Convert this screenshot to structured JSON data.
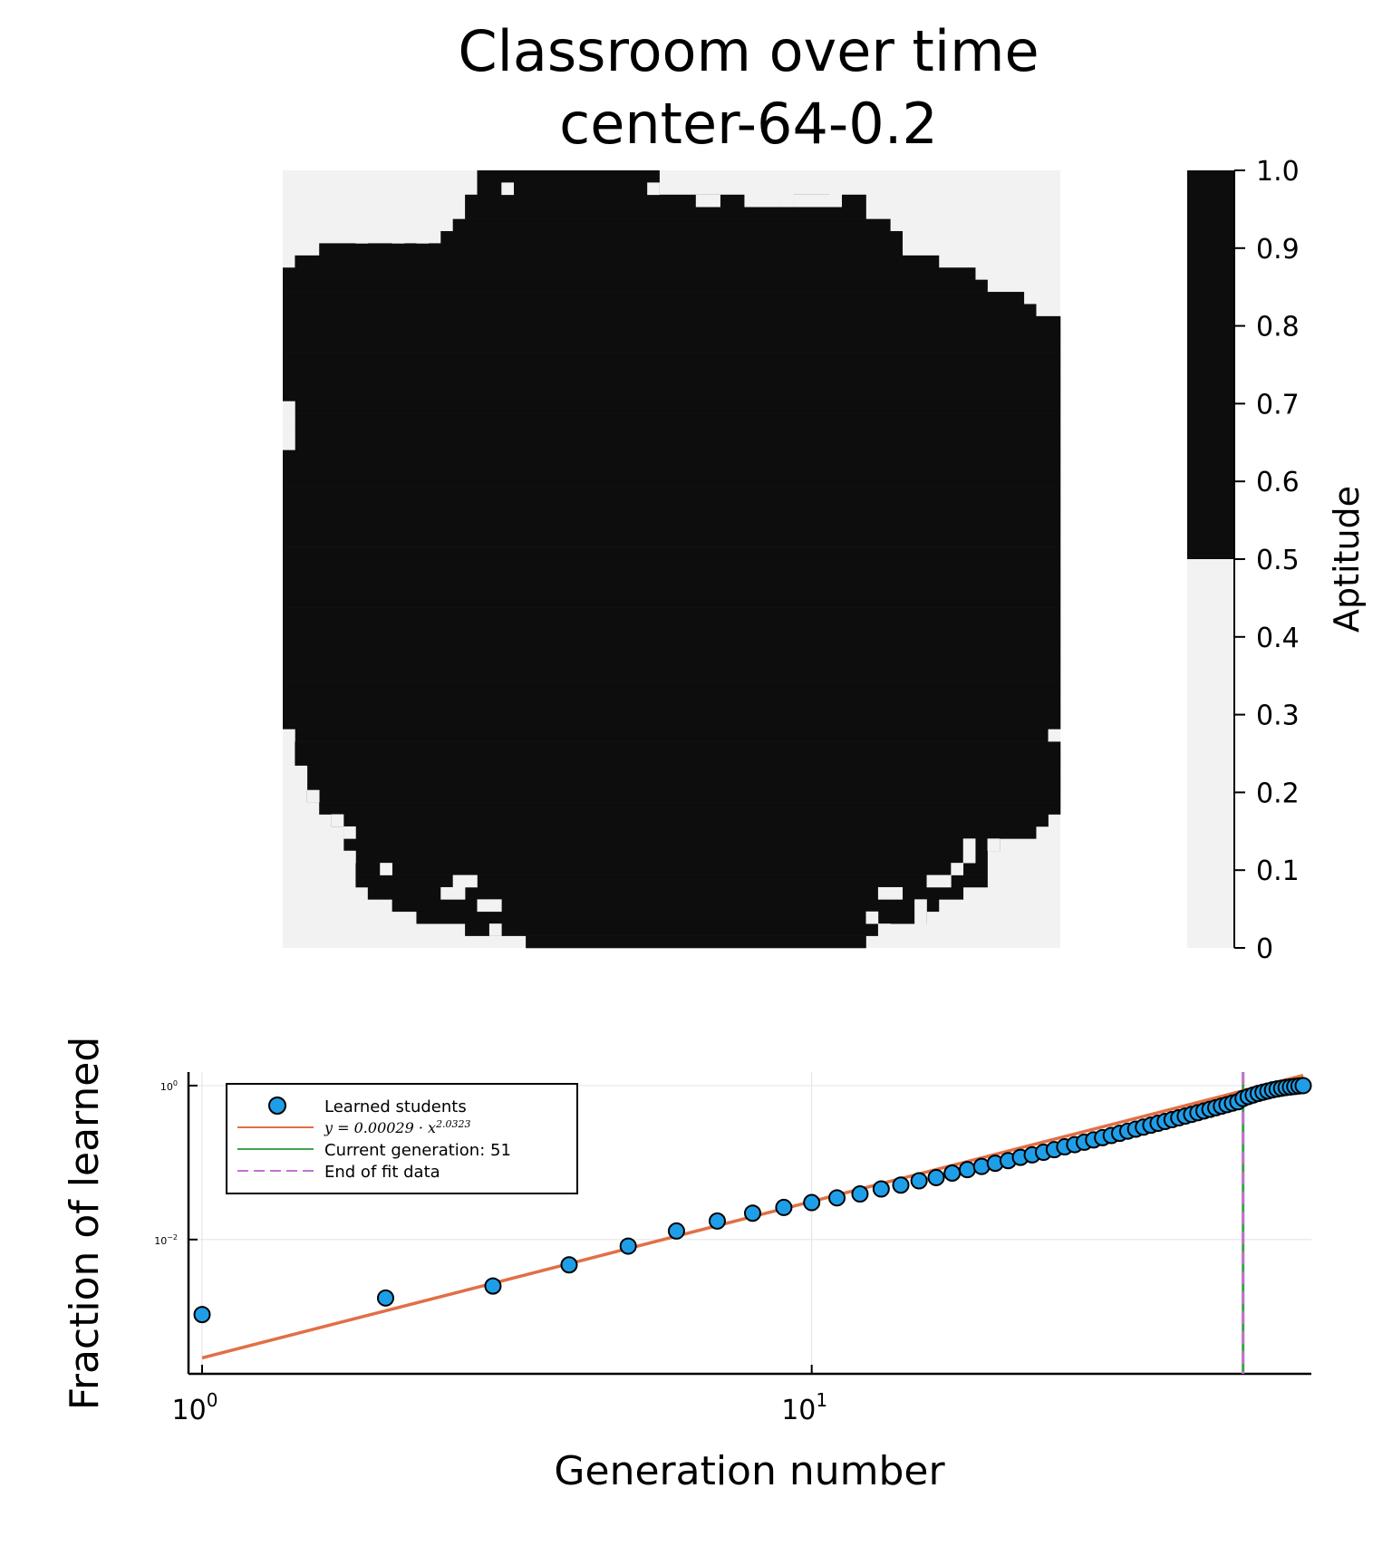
{
  "chart_data": [
    {
      "type": "heatmap",
      "title": "Classroom over time",
      "subtitle": "center-64-0.2",
      "colorbar": {
        "label": "Aptitude",
        "range": [
          0,
          1
        ],
        "ticks": [
          "0",
          "0.1",
          "0.2",
          "0.3",
          "0.4",
          "0.5",
          "0.6",
          "0.7",
          "0.8",
          "0.9",
          "1.0"
        ],
        "threshold": 0.5,
        "colors": {
          "low": "#f2f2f2",
          "high": "#0d0d0d"
        }
      },
      "grid_size": [
        64,
        64
      ],
      "cell_values": "binary: 1 (learned, dark) inside a roughly circular blob filling most of the grid; 0 (light) in the corners",
      "row_spans_learned": [
        [
          16,
          30
        ],
        [
          16,
          30
        ],
        [
          15,
          47
        ],
        [
          15,
          47
        ],
        [
          14,
          49
        ],
        [
          13,
          50
        ],
        [
          3,
          50
        ],
        [
          1,
          53
        ],
        [
          0,
          56
        ],
        [
          0,
          57
        ],
        [
          0,
          60
        ],
        [
          0,
          61
        ],
        [
          0,
          63
        ],
        [
          0,
          63
        ],
        [
          0,
          63
        ],
        [
          0,
          63
        ],
        [
          0,
          63
        ],
        [
          0,
          63
        ],
        [
          0,
          63
        ],
        [
          0,
          63
        ],
        [
          0,
          63
        ],
        [
          0,
          63
        ],
        [
          0,
          63
        ],
        [
          0,
          63
        ],
        [
          0,
          63
        ],
        [
          0,
          63
        ],
        [
          0,
          63
        ],
        [
          0,
          63
        ],
        [
          0,
          63
        ],
        [
          0,
          63
        ],
        [
          0,
          63
        ],
        [
          0,
          63
        ],
        [
          0,
          63
        ],
        [
          0,
          63
        ],
        [
          0,
          63
        ],
        [
          0,
          63
        ],
        [
          0,
          63
        ],
        [
          0,
          63
        ],
        [
          0,
          63
        ],
        [
          0,
          63
        ],
        [
          0,
          63
        ],
        [
          0,
          63
        ],
        [
          0,
          63
        ],
        [
          0,
          63
        ],
        [
          0,
          63
        ],
        [
          0,
          63
        ],
        [
          1,
          62
        ],
        [
          1,
          63
        ],
        [
          1,
          63
        ],
        [
          2,
          63
        ],
        [
          2,
          63
        ],
        [
          2,
          63
        ],
        [
          3,
          63
        ],
        [
          4,
          62
        ],
        [
          5,
          61
        ],
        [
          5,
          58
        ],
        [
          6,
          57
        ],
        [
          6,
          57
        ],
        [
          6,
          57
        ],
        [
          7,
          55
        ],
        [
          9,
          53
        ],
        [
          11,
          52
        ],
        [
          15,
          48
        ],
        [
          20,
          47
        ]
      ],
      "light_holes": [
        [
          0,
          43
        ],
        [
          1,
          18
        ],
        [
          1,
          30
        ],
        [
          1,
          38
        ],
        [
          1,
          39
        ],
        [
          1,
          40
        ],
        [
          1,
          41
        ],
        [
          1,
          45
        ],
        [
          2,
          34
        ],
        [
          2,
          35
        ],
        [
          2,
          38
        ],
        [
          2,
          39
        ],
        [
          2,
          40
        ],
        [
          2,
          41
        ],
        [
          2,
          42
        ],
        [
          2,
          43
        ],
        [
          2,
          44
        ],
        [
          2,
          45
        ],
        [
          4,
          6
        ],
        [
          5,
          6
        ],
        [
          5,
          9
        ],
        [
          5,
          11
        ],
        [
          19,
          0
        ],
        [
          20,
          0
        ],
        [
          21,
          0
        ],
        [
          22,
          0
        ],
        [
          46,
          0
        ],
        [
          46,
          63
        ],
        [
          49,
          1
        ],
        [
          50,
          1
        ],
        [
          51,
          2
        ],
        [
          53,
          4
        ],
        [
          54,
          5
        ],
        [
          55,
          4
        ],
        [
          56,
          5
        ],
        [
          55,
          56
        ],
        [
          55,
          58
        ],
        [
          56,
          56
        ],
        [
          57,
          8
        ],
        [
          57,
          55
        ],
        [
          58,
          14
        ],
        [
          58,
          15
        ],
        [
          58,
          53
        ],
        [
          58,
          54
        ],
        [
          59,
          13
        ],
        [
          59,
          14
        ],
        [
          59,
          49
        ],
        [
          59,
          50
        ],
        [
          60,
          16
        ],
        [
          60,
          17
        ],
        [
          60,
          52
        ],
        [
          61,
          48
        ],
        [
          61,
          52
        ],
        [
          62,
          17
        ],
        [
          62,
          49
        ]
      ]
    },
    {
      "type": "scatter",
      "xlabel": "Generation number",
      "ylabel": "Fraction of learned",
      "x_scale": "log10",
      "y_scale": "log10",
      "xlim": [
        0.95,
        66
      ],
      "ylim": [
        0.00018,
        1.5
      ],
      "x_ticks": [
        "10^0",
        "10^1"
      ],
      "y_ticks": [
        "10^0",
        "10^-2"
      ],
      "grid": true,
      "legend_position": "top-left",
      "legend": [
        "Learned students",
        "y = 0.00029 · x^2.0323",
        "Current generation: 51",
        "End of fit data"
      ],
      "series": [
        {
          "name": "Learned students",
          "kind": "scatter",
          "color": "#1f9ee8",
          "x": [
            1,
            2,
            3,
            4,
            5,
            6,
            7,
            8,
            9,
            10,
            11,
            12,
            13,
            14,
            15,
            16,
            17,
            18,
            19,
            20,
            21,
            22,
            23,
            24,
            25,
            26,
            27,
            28,
            29,
            30,
            31,
            32,
            33,
            34,
            35,
            36,
            37,
            38,
            39,
            40,
            41,
            42,
            43,
            44,
            45,
            46,
            47,
            48,
            49,
            50,
            51,
            52,
            53,
            54,
            55,
            56,
            57,
            58,
            59,
            60,
            61,
            62,
            63,
            64
          ],
          "values": [
            0.00106,
            0.00174,
            0.00249,
            0.00469,
            0.00821,
            0.0129,
            0.0174,
            0.022,
            0.0261,
            0.0302,
            0.0348,
            0.0391,
            0.0454,
            0.051,
            0.058,
            0.0638,
            0.073,
            0.081,
            0.089,
            0.098,
            0.106,
            0.117,
            0.126,
            0.136,
            0.147,
            0.16,
            0.171,
            0.184,
            0.197,
            0.211,
            0.225,
            0.24,
            0.256,
            0.272,
            0.289,
            0.306,
            0.324,
            0.342,
            0.361,
            0.381,
            0.402,
            0.423,
            0.445,
            0.468,
            0.492,
            0.516,
            0.541,
            0.566,
            0.592,
            0.617,
            0.68,
            0.72,
            0.755,
            0.79,
            0.82,
            0.85,
            0.88,
            0.905,
            0.925,
            0.945,
            0.96,
            0.975,
            0.99,
            1.0
          ]
        },
        {
          "name": "y = 0.00029 · x^2.0323",
          "kind": "line",
          "color": "#e26f46",
          "coefficient": 0.00029,
          "exponent": 2.0323,
          "x_range": [
            1,
            64
          ]
        },
        {
          "name": "Current generation: 51",
          "kind": "vline",
          "color": "#3da44d",
          "x": 51
        },
        {
          "name": "End of fit data",
          "kind": "vline-dashed",
          "color": "#c271d2",
          "x": 51
        }
      ]
    }
  ]
}
